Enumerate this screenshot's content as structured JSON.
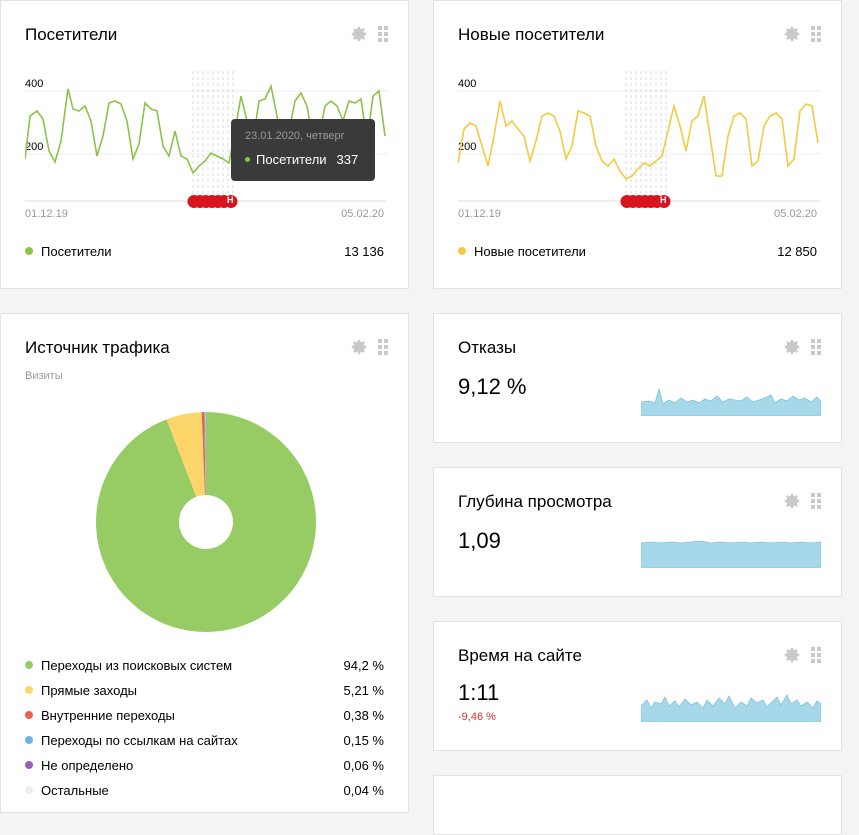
{
  "widgets": {
    "visitors": {
      "title": "Посетители",
      "y_labels": [
        "400",
        "200"
      ],
      "date_start": "01.12.19",
      "date_end": "05.02.20",
      "line_color": "#8bc34a",
      "legend": {
        "name": "Посетители",
        "value": "13 136"
      },
      "tooltip": {
        "date": "23.01.2020, четверг",
        "metric": "Посетители",
        "value": "337"
      },
      "holiday_marker": "Н"
    },
    "new_visitors": {
      "title": "Новые посетители",
      "y_labels": [
        "400",
        "200"
      ],
      "date_start": "01.12.19",
      "date_end": "05.02.20",
      "line_color": "#f5c940",
      "legend": {
        "name": "Новые посетители",
        "value": "12 850"
      },
      "holiday_marker": "Н"
    },
    "traffic_source": {
      "title": "Источник трафика",
      "subtitle": "Визиты",
      "legend": [
        {
          "name": "Переходы из поисковых систем",
          "value": "94,2 %",
          "color": "#96cc63"
        },
        {
          "name": "Прямые заходы",
          "value": "5,21 %",
          "color": "#fcd56b"
        },
        {
          "name": "Внутренние переходы",
          "value": "0,38 %",
          "color": "#e8634c"
        },
        {
          "name": "Переходы по ссылкам на сайтах",
          "value": "0,15 %",
          "color": "#6cb4e0"
        },
        {
          "name": "Не определено",
          "value": "0,06 %",
          "color": "#9c5fb5"
        },
        {
          "name": "Остальные",
          "value": "0,04 %",
          "color": "#eeeeee"
        }
      ]
    },
    "bounce": {
      "title": "Отказы",
      "value": "9,12 %"
    },
    "depth": {
      "title": "Глубина просмотра",
      "value": "1,09"
    },
    "time": {
      "title": "Время на сайте",
      "value": "1:11",
      "delta": "-9,46 %"
    }
  },
  "icons": {
    "settings": "gear-icon",
    "drag": "drag-handle-icon"
  },
  "spark_color": "#a6d8ea"
}
